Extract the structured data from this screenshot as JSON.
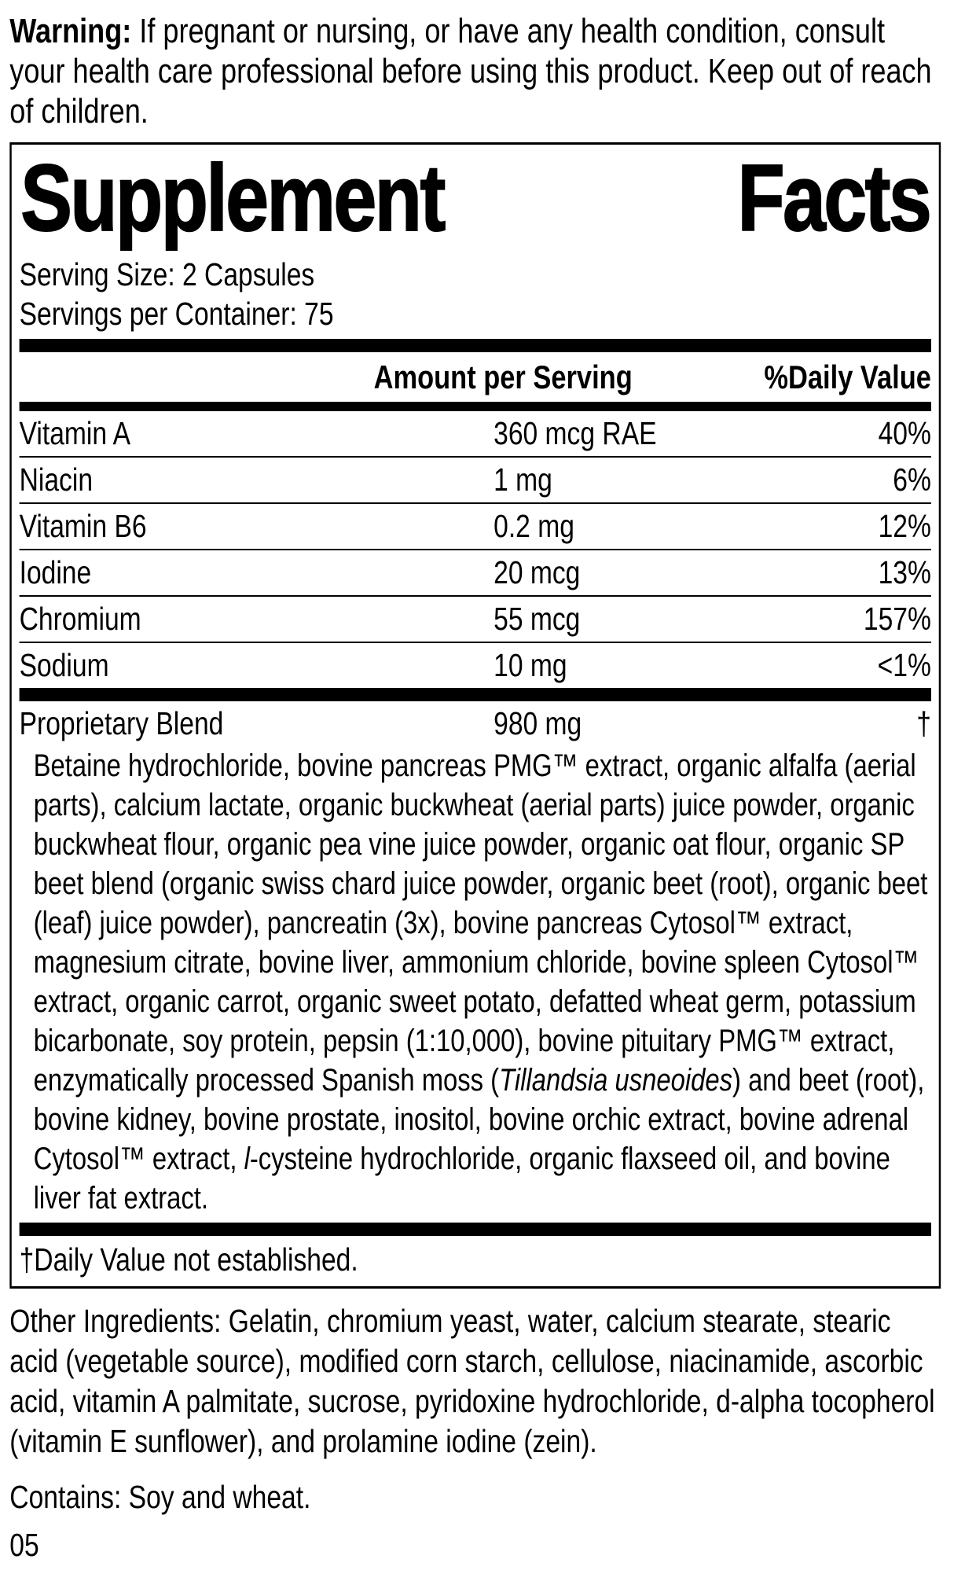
{
  "warning": {
    "label": "Warning:",
    "text": " If pregnant or nursing, or have any health condition, consult your health care professional before using this product. Keep out of reach of children."
  },
  "panel": {
    "title_left": "Supplement",
    "title_right": "Facts",
    "serving_size": "Serving Size: 2 Capsules",
    "servings_per_container": "Servings per Container: 75",
    "columns": {
      "amount_header": "Amount per Serving",
      "daily_value_header": "%Daily Value"
    },
    "nutrients": [
      {
        "name": "Vitamin A",
        "amount": "360 mcg RAE",
        "dv": "40%"
      },
      {
        "name": "Niacin",
        "amount": "1 mg",
        "dv": "6%"
      },
      {
        "name": "Vitamin B6",
        "amount": "0.2 mg",
        "dv": "12%"
      },
      {
        "name": "Iodine",
        "amount": "20 mcg",
        "dv": "13%"
      },
      {
        "name": "Chromium",
        "amount": "55 mcg",
        "dv": "157%"
      },
      {
        "name": "Sodium",
        "amount": "10 mg",
        "dv": "<1%"
      }
    ],
    "blend": {
      "name": "Proprietary Blend",
      "amount": "980 mg",
      "dv": "†",
      "description_segments": [
        {
          "text": "Betaine hydrochloride, bovine pancreas PMG™ extract, organic alfalfa (aerial parts), calcium lactate, organic buckwheat (aerial parts) juice powder, organic buckwheat flour, organic pea vine juice powder, organic oat flour, organic SP beet blend (organic swiss chard juice powder, organic beet (root), organic beet (leaf) juice powder), pancreatin (3x), bovine pancreas Cytosol™ extract, magnesium citrate, bovine liver, ammonium chloride, bovine spleen Cytosol™ extract, organic carrot, organic sweet potato, defatted wheat germ, potassium bicarbonate, soy protein, pepsin (1:10,000), bovine pituitary PMG™ extract, enzymatically processed Spanish moss ("
        },
        {
          "text": "Tillandsia usneoides",
          "italic": true
        },
        {
          "text": ") and beet (root), bovine kidney, bovine prostate, inositol, bovine orchic extract, bovine adrenal Cytosol™ extract, "
        },
        {
          "text": "l",
          "italic": true
        },
        {
          "text": "-cysteine hydrochloride, organic flaxseed oil, and bovine liver fat extract."
        }
      ]
    },
    "footnote": "†Daily Value not established."
  },
  "other_ingredients": "Other Ingredients: Gelatin, chromium yeast, water, calcium stearate, stearic acid (vegetable source), modified corn starch, cellulose, niacinamide, ascorbic acid, vitamin A palmitate, sucrose, pyridoxine hydrochloride, d-alpha tocopherol (vitamin E sunflower), and prolamine iodine (zein).",
  "contains": "Contains: Soy and wheat.",
  "page_number": "05",
  "colors": {
    "ink": "#000000",
    "background": "#ffffff"
  }
}
